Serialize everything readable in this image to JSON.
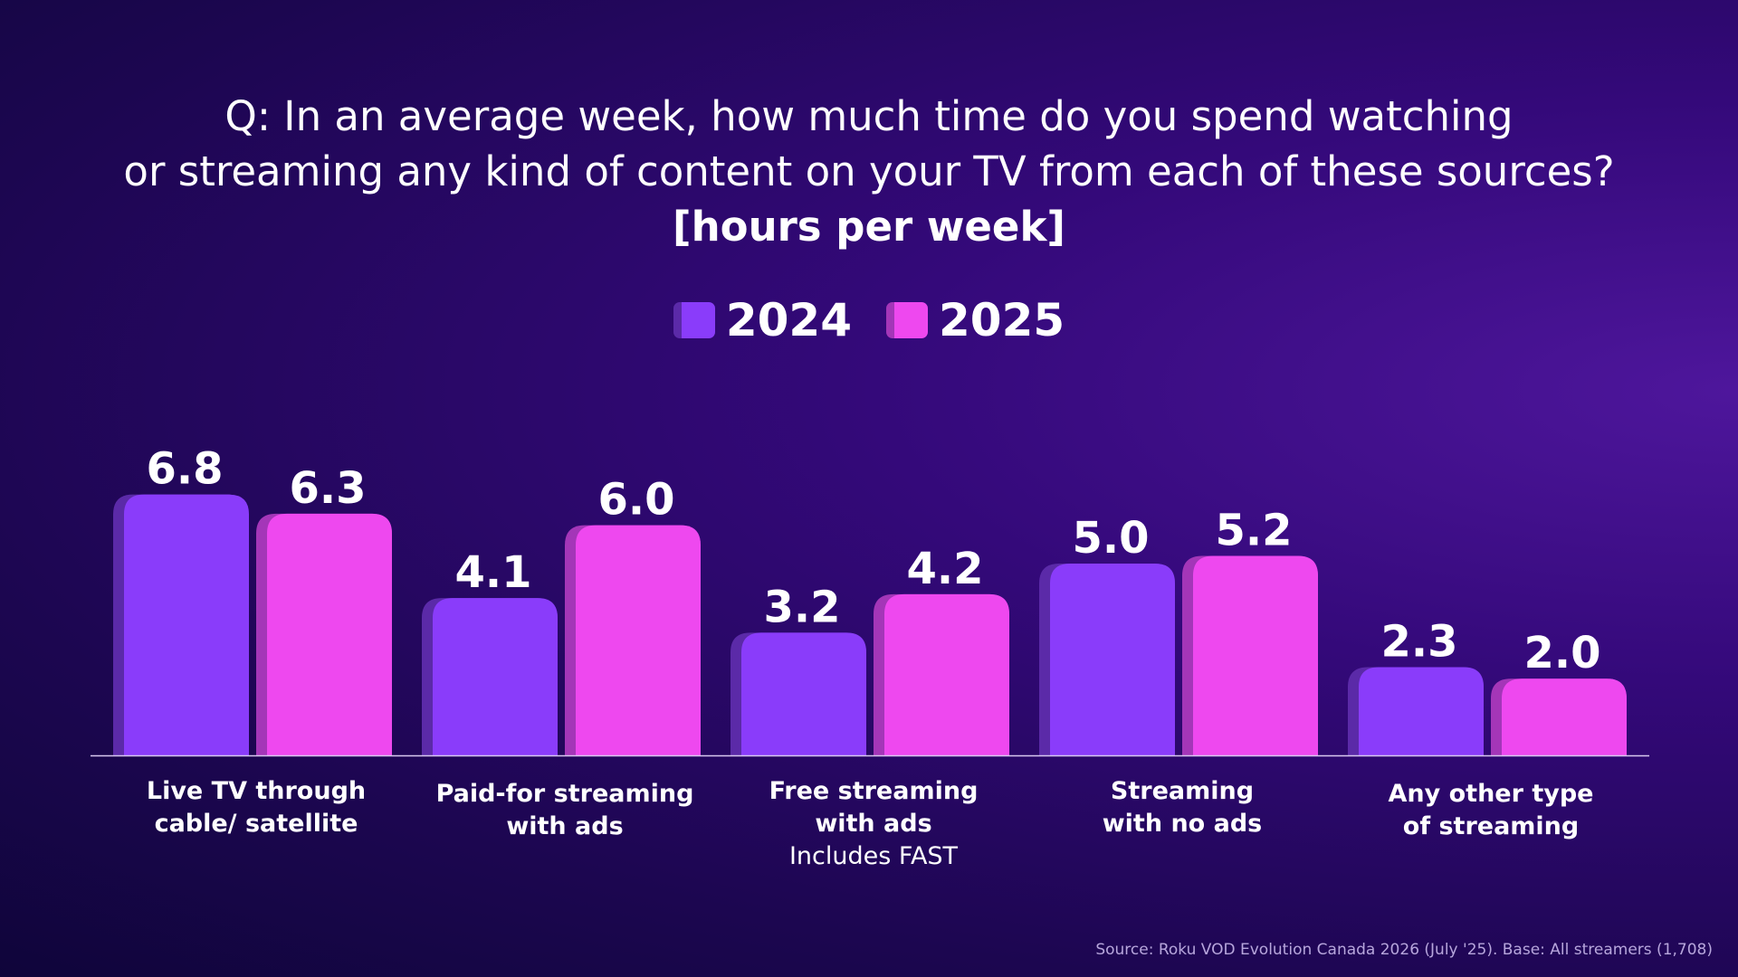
{
  "title": {
    "line1": "Q: In an average week, how much time do you spend watching",
    "line2": "or streaming any kind of content on your TV from each of these sources?",
    "unit": "[hours per week]"
  },
  "colors": {
    "series_2024": "#8a3cfa",
    "series_2024_shadow": "#5b2aa8",
    "series_2025": "#ee48ef",
    "series_2025_shadow": "#a436b8",
    "axis": "#d8c8f0"
  },
  "chart_data": {
    "type": "bar",
    "legend_position": "top-center",
    "grid": false,
    "ylim": [
      0,
      7.5
    ],
    "categories": [
      {
        "line1": "Live TV through",
        "line2": "cable/ satellite",
        "note": ""
      },
      {
        "line1": "Paid-for streaming",
        "line2": "with ads",
        "note": ""
      },
      {
        "line1": "Free streaming",
        "line2": "with ads",
        "note": "Includes FAST"
      },
      {
        "line1": "Streaming",
        "line2": "with no ads",
        "note": ""
      },
      {
        "line1": "Any other type",
        "line2": "of streaming",
        "note": ""
      }
    ],
    "series": [
      {
        "name": "2024",
        "values": [
          6.8,
          4.1,
          3.2,
          5.0,
          2.3
        ],
        "labels": [
          "6.8",
          "4.1",
          "3.2",
          "5.0",
          "2.3"
        ]
      },
      {
        "name": "2025",
        "values": [
          6.3,
          6.0,
          4.2,
          5.2,
          2.0
        ],
        "labels": [
          "6.3",
          "6.0",
          "4.2",
          "5.2",
          "2.0"
        ]
      }
    ]
  },
  "source": "Source: Roku VOD Evolution Canada 2026 (July '25). Base: All streamers (1,708)"
}
